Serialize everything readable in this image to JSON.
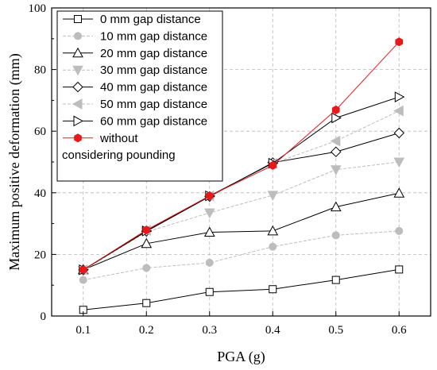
{
  "chart_data": {
    "type": "line",
    "xlabel": "PGA (g)",
    "ylabel": "Maximum positive deformation (mm)",
    "x": [
      0.1,
      0.2,
      0.3,
      0.4,
      0.5,
      0.6
    ],
    "x_ticks": [
      "0.1",
      "0.2",
      "0.3",
      "0.4",
      "0.5",
      "0.6"
    ],
    "y_ticks": [
      "0",
      "20",
      "40",
      "60",
      "80",
      "100"
    ],
    "xlim": [
      0.05,
      0.65
    ],
    "ylim": [
      0,
      100
    ],
    "grid": true,
    "legend_position": "top-left",
    "series": [
      {
        "name": "0 mm gap distance",
        "values": [
          2,
          4.2,
          7.8,
          8.7,
          11.7,
          15.1
        ],
        "color": "#000000",
        "marker": "square-open",
        "dashed": false
      },
      {
        "name": "10 mm gap distance",
        "values": [
          11.7,
          15.6,
          17.3,
          22.5,
          26.2,
          27.6
        ],
        "color": "#bdbdbd",
        "marker": "circle-filled",
        "dashed": true
      },
      {
        "name": "20 mm gap distance",
        "values": [
          15,
          23.5,
          27.2,
          27.6,
          35.4,
          39.9
        ],
        "color": "#000000",
        "marker": "triangle-up-open",
        "dashed": false
      },
      {
        "name": "30 mm gap distance",
        "values": [
          14.8,
          27.3,
          33.5,
          39.2,
          47.5,
          50
        ],
        "color": "#bdbdbd",
        "marker": "triangle-down-filled",
        "dashed": true
      },
      {
        "name": "40 mm gap distance",
        "values": [
          15,
          27.5,
          38.8,
          49.8,
          53.3,
          59.4
        ],
        "color": "#000000",
        "marker": "diamond-open",
        "dashed": false
      },
      {
        "name": "50 mm gap distance",
        "values": [
          15,
          27.8,
          39,
          49.5,
          56.8,
          66.6
        ],
        "color": "#bdbdbd",
        "marker": "triangle-left-filled",
        "dashed": true
      },
      {
        "name": "60 mm gap distance",
        "values": [
          15,
          27.6,
          39,
          49.6,
          64.3,
          71.1
        ],
        "color": "#000000",
        "marker": "triangle-right-open",
        "dashed": false
      },
      {
        "name": "without",
        "values": [
          15,
          27.9,
          39,
          48.9,
          66.9,
          89
        ],
        "color": "#e8191b",
        "marker": "hexagon-filled",
        "dashed": false
      }
    ],
    "legend_extra_line": "considering pounding"
  }
}
